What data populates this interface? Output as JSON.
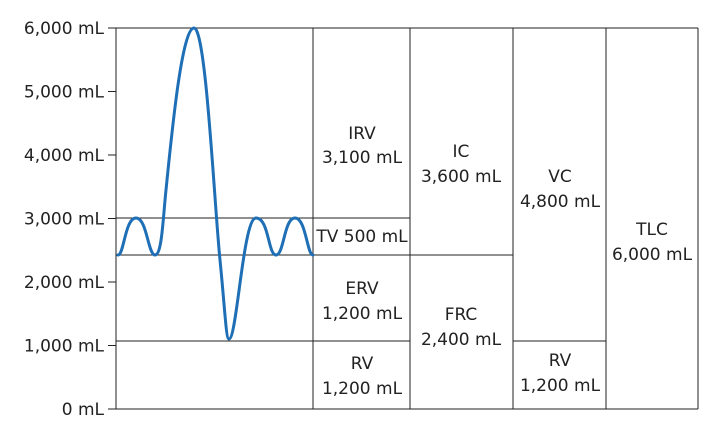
{
  "y_axis": {
    "ticks": [
      {
        "value": 6000,
        "label": "6,000 mL"
      },
      {
        "value": 5000,
        "label": "5,000 mL"
      },
      {
        "value": 4000,
        "label": "4,000 mL"
      },
      {
        "value": 3000,
        "label": "3,000 mL"
      },
      {
        "value": 2000,
        "label": "2,000 mL"
      },
      {
        "value": 1000,
        "label": "1,000 mL"
      },
      {
        "value": 0,
        "label": "0 mL"
      }
    ]
  },
  "columns": {
    "col1": {
      "irv": {
        "name": "IRV",
        "value": "3,100 mL"
      },
      "tv": {
        "label": "TV 500 mL"
      },
      "erv": {
        "name": "ERV",
        "value": "1,200 mL"
      },
      "rv": {
        "name": "RV",
        "value": "1,200 mL"
      }
    },
    "col2": {
      "ic": {
        "name": "IC",
        "value": "3,600 mL"
      },
      "frc": {
        "name": "FRC",
        "value": "2,400 mL"
      }
    },
    "col3": {
      "vc": {
        "name": "VC",
        "value": "4,800 mL"
      },
      "rv": {
        "name": "RV",
        "value": "1,200 mL"
      }
    },
    "col4": {
      "tlc": {
        "name": "TLC",
        "value": "6,000 mL"
      }
    }
  },
  "colors": {
    "trace": "#1e6fb5",
    "lines": "#222222"
  }
}
